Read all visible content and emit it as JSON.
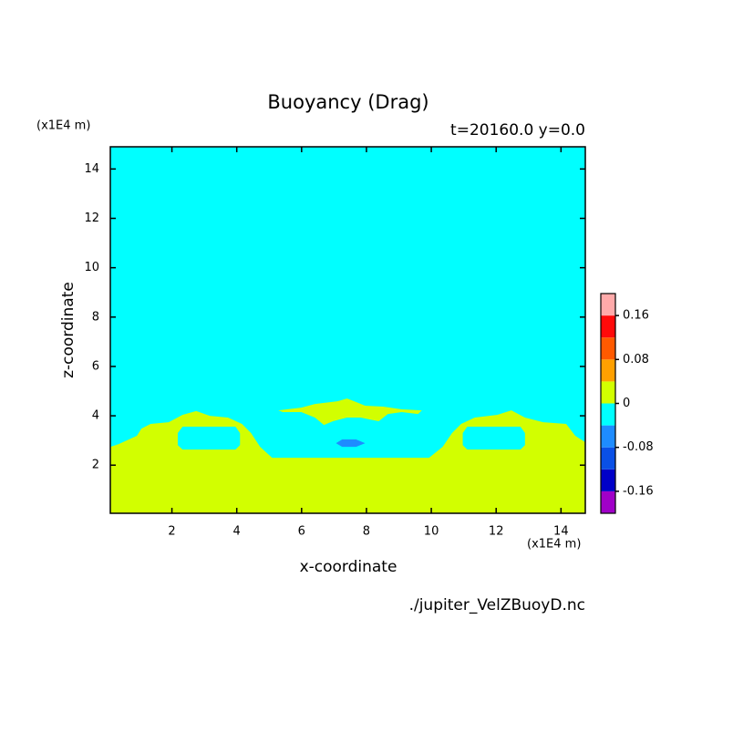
{
  "chart_data": {
    "type": "contour",
    "title": "Buoyancy (Drag)",
    "subtitle": "t=20160.0 y=0.0",
    "x_label": "x-coordinate",
    "y_label": "z-coordinate",
    "x_unit": "(x1E4 m)",
    "y_unit": "(x1E4 m)",
    "source": "./jupiter_VelZBuoyD.nc",
    "xlim": [
      0.1,
      14.75
    ],
    "ylim": [
      0.05,
      14.9
    ],
    "xticks": [
      2,
      4,
      6,
      8,
      10,
      12,
      14
    ],
    "yticks": [
      2,
      4,
      6,
      8,
      10,
      12,
      14
    ],
    "clim": [
      -0.2,
      0.2
    ],
    "cticks": [
      -0.16,
      -0.08,
      0,
      0.08,
      0.16
    ],
    "colors": [
      "#a000c8",
      "#0000c8",
      "#0a50e6",
      "#1e8cff",
      "#00ffff",
      "#d2ff00",
      "#ffa000",
      "#ff5a00",
      "#ff0a0a",
      "#ffaaaa"
    ],
    "background_value": -0.02,
    "regions": [
      {
        "value": 0.02,
        "outline": [
          [
            0.1,
            0.05
          ],
          [
            0.1,
            2.74
          ],
          [
            0.35,
            2.85
          ],
          [
            0.92,
            3.19
          ],
          [
            1.06,
            3.48
          ],
          [
            1.34,
            3.67
          ],
          [
            1.9,
            3.74
          ],
          [
            2.33,
            4.04
          ],
          [
            2.75,
            4.19
          ],
          [
            3.17,
            4.0
          ],
          [
            3.73,
            3.93
          ],
          [
            4.16,
            3.67
          ],
          [
            4.44,
            3.3
          ],
          [
            4.72,
            2.74
          ],
          [
            5.09,
            2.3
          ],
          [
            9.93,
            2.3
          ],
          [
            10.35,
            2.74
          ],
          [
            10.64,
            3.3
          ],
          [
            10.92,
            3.67
          ],
          [
            11.34,
            3.93
          ],
          [
            12.04,
            4.04
          ],
          [
            12.47,
            4.22
          ],
          [
            12.89,
            3.93
          ],
          [
            13.45,
            3.74
          ],
          [
            14.16,
            3.67
          ],
          [
            14.44,
            3.19
          ],
          [
            14.75,
            2.93
          ],
          [
            14.75,
            0.05
          ]
        ]
      },
      {
        "value": -0.02,
        "outline": [
          [
            2.33,
            3.56
          ],
          [
            3.96,
            3.56
          ],
          [
            4.1,
            3.3
          ],
          [
            4.1,
            2.81
          ],
          [
            3.96,
            2.63
          ],
          [
            2.33,
            2.63
          ],
          [
            2.18,
            2.81
          ],
          [
            2.18,
            3.3
          ]
        ]
      },
      {
        "value": -0.02,
        "outline": [
          [
            11.11,
            3.56
          ],
          [
            12.75,
            3.56
          ],
          [
            12.89,
            3.3
          ],
          [
            12.89,
            2.81
          ],
          [
            12.75,
            2.63
          ],
          [
            11.11,
            2.63
          ],
          [
            10.97,
            2.81
          ],
          [
            10.97,
            3.3
          ]
        ]
      },
      {
        "value": 0.02,
        "outline": [
          [
            5.28,
            4.22
          ],
          [
            5.99,
            4.33
          ],
          [
            6.41,
            4.48
          ],
          [
            7.11,
            4.59
          ],
          [
            7.4,
            4.7
          ],
          [
            7.62,
            4.59
          ],
          [
            7.96,
            4.41
          ],
          [
            8.52,
            4.37
          ],
          [
            9.09,
            4.26
          ],
          [
            9.71,
            4.22
          ],
          [
            9.59,
            4.07
          ],
          [
            9.09,
            4.15
          ],
          [
            8.66,
            4.07
          ],
          [
            8.38,
            3.78
          ],
          [
            8.1,
            3.85
          ],
          [
            7.82,
            3.93
          ],
          [
            7.4,
            3.93
          ],
          [
            6.97,
            3.78
          ],
          [
            6.69,
            3.63
          ],
          [
            6.41,
            3.93
          ],
          [
            5.99,
            4.15
          ],
          [
            5.42,
            4.15
          ]
        ]
      },
      {
        "value": -0.06,
        "outline": [
          [
            7.06,
            2.89
          ],
          [
            7.25,
            3.04
          ],
          [
            7.68,
            3.04
          ],
          [
            7.96,
            2.89
          ],
          [
            7.68,
            2.74
          ],
          [
            7.25,
            2.74
          ]
        ]
      }
    ]
  }
}
